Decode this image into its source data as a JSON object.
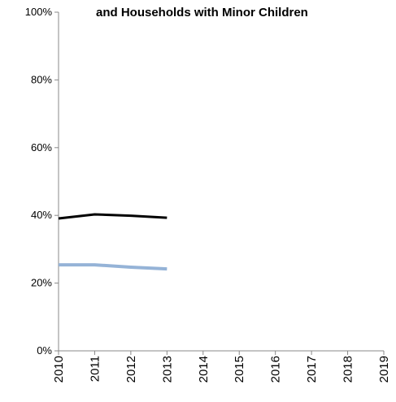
{
  "chart_data": {
    "type": "line",
    "title": "and Households with Minor Children",
    "x": [
      2010,
      2011,
      2012,
      2013
    ],
    "series": [
      {
        "color": "#000000",
        "values": [
          39.1,
          40.3,
          39.9,
          39.3
        ]
      },
      {
        "color": "#95b3d7",
        "values": [
          25.4,
          25.4,
          24.7,
          24.2
        ]
      }
    ],
    "xlim": [
      2010,
      2019
    ],
    "xticks": [
      2010,
      2011,
      2012,
      2013,
      2014,
      2015,
      2016,
      2017,
      2018,
      2019
    ],
    "ylim": [
      0,
      100
    ],
    "yticks": [
      {
        "value": 0,
        "label": "0%"
      },
      {
        "value": 20,
        "label": "20%"
      },
      {
        "value": 40,
        "label": "40%"
      },
      {
        "value": 60,
        "label": "60%"
      },
      {
        "value": 80,
        "label": "80%"
      },
      {
        "value": 100,
        "label": "100%"
      }
    ]
  }
}
